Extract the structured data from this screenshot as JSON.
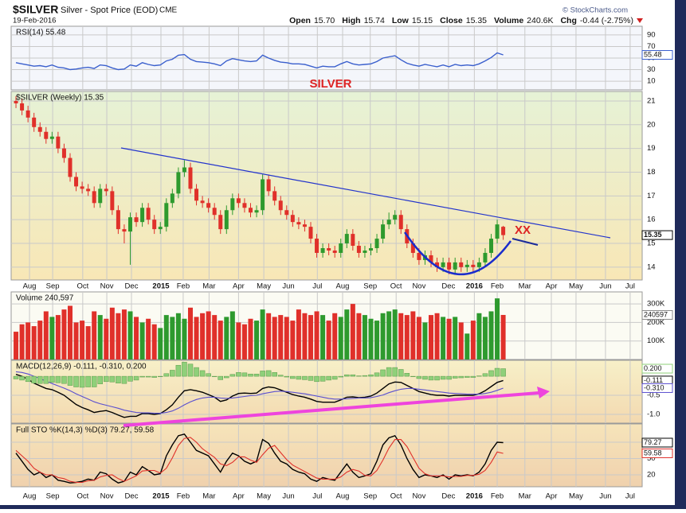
{
  "header": {
    "symbol": "$SILVER",
    "name": "Silver - Spot Price (EOD)",
    "exchange": "CME",
    "date": "19-Feb-2016",
    "quote": [
      {
        "label": "Open",
        "value": "15.70"
      },
      {
        "label": "High",
        "value": "15.74"
      },
      {
        "label": "Low",
        "value": "15.15"
      },
      {
        "label": "Close",
        "value": "15.35"
      },
      {
        "label": "Volume",
        "value": "240.6K"
      },
      {
        "label": "Chg",
        "value": "-0.44 (-2.75%)"
      }
    ],
    "credit": "© StockCharts.com"
  },
  "chart_data": [
    {
      "type": "line",
      "title": "RSI(14) 55.48",
      "ylim": [
        -5,
        105
      ],
      "yticks": [
        90,
        70,
        50,
        30,
        10
      ],
      "grid": true,
      "series": [
        {
          "color": "#3a5fcd",
          "values": [
            42,
            40,
            38,
            36,
            37,
            35,
            38,
            34,
            33,
            30,
            31,
            33,
            34,
            32,
            38,
            37,
            33,
            30,
            31,
            38,
            36,
            42,
            39,
            37,
            38,
            45,
            48,
            55,
            56,
            48,
            44,
            43,
            42,
            40,
            37,
            45,
            49,
            47,
            45,
            44,
            45,
            55,
            50,
            46,
            43,
            42,
            40,
            40,
            39,
            36,
            33,
            36,
            35,
            35,
            40,
            44,
            40,
            38,
            39,
            40,
            44,
            50,
            52,
            54,
            47,
            41,
            38,
            36,
            39,
            37,
            35,
            38,
            35,
            39,
            37,
            38,
            37,
            40,
            45,
            51,
            59,
            55.48
          ]
        }
      ]
    },
    {
      "type": "candlestick",
      "title": "$SILVER (Weekly) 15.35",
      "annotations": [
        "SILVER",
        "XX"
      ],
      "xlim": [
        -0.8,
        104.1
      ],
      "xticks": [
        {
          "value": 2.25,
          "label": "Aug"
        },
        {
          "value": 6.1,
          "label": "Sep"
        },
        {
          "value": 11.1,
          "label": "Oct"
        },
        {
          "value": 15.1,
          "label": "Nov"
        },
        {
          "value": 19.2,
          "label": "Dec"
        },
        {
          "value": 24.1,
          "label": "2015"
        },
        {
          "value": 27.8,
          "label": "Feb"
        },
        {
          "value": 32.1,
          "label": "Mar"
        },
        {
          "value": 37.0,
          "label": "Apr"
        },
        {
          "value": 41.2,
          "label": "May"
        },
        {
          "value": 45.3,
          "label": "Jun"
        },
        {
          "value": 50.1,
          "label": "Jul"
        },
        {
          "value": 54.3,
          "label": "Aug"
        },
        {
          "value": 58.9,
          "label": "Sep"
        },
        {
          "value": 63.2,
          "label": "Oct"
        },
        {
          "value": 67.0,
          "label": "Nov"
        },
        {
          "value": 71.9,
          "label": "Dec"
        },
        {
          "value": 76.2,
          "label": "2016"
        },
        {
          "value": 80.0,
          "label": "Feb"
        },
        {
          "value": 84.6,
          "label": "Mar"
        },
        {
          "value": 89.0,
          "label": "Apr"
        },
        {
          "value": 93.1,
          "label": "May"
        },
        {
          "value": 98.0,
          "label": "Jun"
        },
        {
          "value": 102.1,
          "label": "Jul"
        }
      ],
      "ylim": [
        13.46,
        21.4
      ],
      "yticks": [
        14,
        15,
        16,
        17,
        18,
        19,
        20,
        21
      ],
      "grid": true,
      "up_color": "#2e9a2e",
      "down_color": "#e0302a",
      "open": [
        21.0,
        20.9,
        20.6,
        20.3,
        19.9,
        19.7,
        19.4,
        19.5,
        19.0,
        18.6,
        17.8,
        17.4,
        17.3,
        17.2,
        16.7,
        17.3,
        17.2,
        16.4,
        15.6,
        15.5,
        16.1,
        15.9,
        16.5,
        16.0,
        15.6,
        15.7,
        16.7,
        17.1,
        18.0,
        18.2,
        17.3,
        16.8,
        16.7,
        16.5,
        16.2,
        15.6,
        16.4,
        16.9,
        16.7,
        16.5,
        16.3,
        16.4,
        17.7,
        17.2,
        16.8,
        16.4,
        16.2,
        15.9,
        15.8,
        15.7,
        15.2,
        14.6,
        14.8,
        14.7,
        14.6,
        15.0,
        15.4,
        14.9,
        14.6,
        14.7,
        14.8,
        15.2,
        15.8,
        16.0,
        16.2,
        15.6,
        15.0,
        14.6,
        14.3,
        14.5,
        14.2,
        14.0,
        14.2,
        13.9,
        14.2,
        14.0,
        14.1,
        14.0,
        14.2,
        14.6,
        15.2,
        15.7
      ],
      "high": [
        21.2,
        21.1,
        20.8,
        20.5,
        20.1,
        19.9,
        19.7,
        19.7,
        19.2,
        18.8,
        18.0,
        17.6,
        17.5,
        17.4,
        17.5,
        17.5,
        17.4,
        16.6,
        15.8,
        16.3,
        16.3,
        16.7,
        16.7,
        16.2,
        15.9,
        16.9,
        17.3,
        18.2,
        18.5,
        18.4,
        17.5,
        17.0,
        16.9,
        16.7,
        16.4,
        16.6,
        17.1,
        17.1,
        16.9,
        16.7,
        16.6,
        17.9,
        17.9,
        17.4,
        17.0,
        16.6,
        16.4,
        16.1,
        16.0,
        15.9,
        15.4,
        15.0,
        15.0,
        14.9,
        15.2,
        15.6,
        15.6,
        15.1,
        14.9,
        15.0,
        15.4,
        16.0,
        16.3,
        16.4,
        16.4,
        15.8,
        15.2,
        14.8,
        14.7,
        14.7,
        14.4,
        14.4,
        14.4,
        14.4,
        14.4,
        14.3,
        14.3,
        14.4,
        14.8,
        15.4,
        16.0,
        15.74
      ],
      "low": [
        20.7,
        20.4,
        20.1,
        19.7,
        19.5,
        19.2,
        19.2,
        18.8,
        18.4,
        17.6,
        17.2,
        17.1,
        17.0,
        16.5,
        16.5,
        17.0,
        16.2,
        15.4,
        15.0,
        14.1,
        15.7,
        15.7,
        15.8,
        15.4,
        15.4,
        15.5,
        16.5,
        16.9,
        17.8,
        17.1,
        16.6,
        16.5,
        16.3,
        16.0,
        15.4,
        15.4,
        16.2,
        16.5,
        16.3,
        16.1,
        16.1,
        16.2,
        17.0,
        16.6,
        16.2,
        16.0,
        15.7,
        15.6,
        15.5,
        15.0,
        14.4,
        14.4,
        14.5,
        14.4,
        14.4,
        14.8,
        14.7,
        14.4,
        14.4,
        14.5,
        14.6,
        15.0,
        15.6,
        15.8,
        15.4,
        14.8,
        14.4,
        14.1,
        14.1,
        14.0,
        13.8,
        13.8,
        13.7,
        13.7,
        13.8,
        13.8,
        13.8,
        13.8,
        14.0,
        14.4,
        15.0,
        15.15
      ],
      "close": [
        20.9,
        20.6,
        20.3,
        19.9,
        19.7,
        19.4,
        19.5,
        19.0,
        18.6,
        17.8,
        17.4,
        17.3,
        17.2,
        16.7,
        17.3,
        17.2,
        16.4,
        15.6,
        15.5,
        16.1,
        15.9,
        16.5,
        16.0,
        15.6,
        15.7,
        16.7,
        17.1,
        18.0,
        18.2,
        17.3,
        16.8,
        16.7,
        16.5,
        16.2,
        15.6,
        16.4,
        16.9,
        16.7,
        16.5,
        16.3,
        16.4,
        17.7,
        17.2,
        16.8,
        16.4,
        16.2,
        15.9,
        15.8,
        15.7,
        15.2,
        14.6,
        14.8,
        14.7,
        14.6,
        15.0,
        15.4,
        14.9,
        14.6,
        14.7,
        14.8,
        15.2,
        15.8,
        16.0,
        16.2,
        15.6,
        15.0,
        14.6,
        14.3,
        14.5,
        14.2,
        14.0,
        14.2,
        13.9,
        14.2,
        14.0,
        14.1,
        14.0,
        14.2,
        14.6,
        15.2,
        15.8,
        15.35
      ]
    },
    {
      "type": "bar",
      "title": "Volume 240,597",
      "ylim": [
        0,
        365000
      ],
      "grid": true,
      "yticks": [
        {
          "value": 100000,
          "label": "100K"
        },
        {
          "value": 200000,
          "label": "200K"
        },
        {
          "value": 300000,
          "label": "300K"
        }
      ],
      "values": [
        150000,
        190000,
        200000,
        180000,
        210000,
        260000,
        230000,
        240000,
        270000,
        290000,
        200000,
        210000,
        180000,
        260000,
        240000,
        220000,
        280000,
        250000,
        270000,
        260000,
        230000,
        200000,
        220000,
        190000,
        170000,
        240000,
        230000,
        250000,
        220000,
        280000,
        230000,
        250000,
        260000,
        240000,
        210000,
        230000,
        260000,
        200000,
        190000,
        220000,
        210000,
        270000,
        250000,
        230000,
        240000,
        230000,
        210000,
        270000,
        250000,
        240000,
        260000,
        240000,
        210000,
        250000,
        230000,
        270000,
        300000,
        250000,
        240000,
        220000,
        210000,
        250000,
        260000,
        270000,
        250000,
        240000,
        260000,
        230000,
        200000,
        240000,
        250000,
        230000,
        220000,
        230000,
        200000,
        140000,
        210000,
        250000,
        230000,
        260000,
        330000,
        240597
      ]
    },
    {
      "type": "line",
      "title": "MACD(12,26,9) -0.111, -0.310, 0.200",
      "ylim": [
        -1.23,
        0.42
      ],
      "grid": true,
      "yticks": [
        {
          "value": -1,
          "label": "-1.0"
        },
        {
          "value": -0.5,
          "label": "-0.5"
        }
      ],
      "series": [
        {
          "color": "#000000",
          "values": [
            0.05,
            0.0,
            -0.08,
            -0.18,
            -0.25,
            -0.32,
            -0.35,
            -0.42,
            -0.5,
            -0.62,
            -0.74,
            -0.82,
            -0.88,
            -0.95,
            -0.92,
            -0.9,
            -0.95,
            -1.02,
            -1.08,
            -1.05,
            -1.05,
            -0.98,
            -0.98,
            -1.0,
            -0.98,
            -0.88,
            -0.75,
            -0.55,
            -0.38,
            -0.35,
            -0.38,
            -0.42,
            -0.48,
            -0.55,
            -0.66,
            -0.62,
            -0.52,
            -0.45,
            -0.44,
            -0.45,
            -0.44,
            -0.32,
            -0.28,
            -0.3,
            -0.36,
            -0.42,
            -0.48,
            -0.52,
            -0.55,
            -0.6,
            -0.66,
            -0.68,
            -0.68,
            -0.68,
            -0.62,
            -0.55,
            -0.54,
            -0.56,
            -0.55,
            -0.52,
            -0.44,
            -0.32,
            -0.2,
            -0.15,
            -0.16,
            -0.24,
            -0.32,
            -0.4,
            -0.44,
            -0.48,
            -0.5,
            -0.5,
            -0.52,
            -0.5,
            -0.5,
            -0.5,
            -0.5,
            -0.46,
            -0.38,
            -0.27,
            -0.16,
            -0.111
          ]
        },
        {
          "color": "#5a4fcf",
          "last_label": "-0.310",
          "values": [
            0.12,
            0.1,
            0.06,
            0.0,
            -0.06,
            -0.13,
            -0.19,
            -0.25,
            -0.31,
            -0.38,
            -0.46,
            -0.53,
            -0.6,
            -0.67,
            -0.72,
            -0.76,
            -0.8,
            -0.84,
            -0.89,
            -0.92,
            -0.95,
            -0.96,
            -0.96,
            -0.97,
            -0.97,
            -0.95,
            -0.91,
            -0.84,
            -0.75,
            -0.67,
            -0.61,
            -0.57,
            -0.55,
            -0.55,
            -0.57,
            -0.58,
            -0.57,
            -0.55,
            -0.53,
            -0.51,
            -0.5,
            -0.46,
            -0.43,
            -0.4,
            -0.39,
            -0.4,
            -0.42,
            -0.44,
            -0.46,
            -0.49,
            -0.52,
            -0.55,
            -0.58,
            -0.6,
            -0.6,
            -0.59,
            -0.58,
            -0.57,
            -0.57,
            -0.56,
            -0.53,
            -0.49,
            -0.43,
            -0.38,
            -0.34,
            -0.32,
            -0.32,
            -0.34,
            -0.36,
            -0.38,
            -0.4,
            -0.42,
            -0.44,
            -0.45,
            -0.46,
            -0.47,
            -0.47,
            -0.47,
            -0.45,
            -0.42,
            -0.37,
            -0.31
          ]
        },
        {
          "type": "bar",
          "color": "#8fd07a",
          "last_label": "0.200",
          "values": [
            -0.07,
            -0.1,
            -0.14,
            -0.18,
            -0.19,
            -0.19,
            -0.16,
            -0.17,
            -0.19,
            -0.24,
            -0.28,
            -0.29,
            -0.28,
            -0.28,
            -0.2,
            -0.14,
            -0.15,
            -0.18,
            -0.19,
            -0.13,
            -0.1,
            -0.02,
            -0.02,
            -0.03,
            -0.01,
            0.07,
            0.16,
            0.29,
            0.37,
            0.32,
            0.23,
            0.15,
            0.07,
            0.0,
            -0.09,
            -0.04,
            0.05,
            0.1,
            0.09,
            0.06,
            0.06,
            0.14,
            0.15,
            0.1,
            0.03,
            -0.02,
            -0.06,
            -0.08,
            -0.09,
            -0.11,
            -0.14,
            -0.13,
            -0.1,
            -0.08,
            -0.02,
            0.04,
            0.04,
            0.01,
            0.02,
            0.04,
            0.09,
            0.17,
            0.23,
            0.23,
            0.18,
            0.08,
            0.0,
            -0.06,
            -0.08,
            -0.1,
            -0.1,
            -0.08,
            -0.08,
            -0.05,
            -0.04,
            -0.03,
            -0.03,
            0.01,
            0.07,
            0.15,
            0.21,
            0.2
          ]
        }
      ]
    },
    {
      "type": "line",
      "title": "Full STO %K(14,3) %D(3) 79.27, 59.58",
      "ylim": [
        -2,
        113.7
      ],
      "yticks": [
        80,
        50,
        20
      ],
      "grid": true,
      "series": [
        {
          "color": "#000000",
          "values": [
            60,
            45,
            30,
            20,
            25,
            15,
            20,
            10,
            8,
            5,
            6,
            8,
            12,
            10,
            25,
            22,
            12,
            5,
            8,
            25,
            20,
            35,
            28,
            20,
            22,
            55,
            75,
            92,
            95,
            80,
            65,
            60,
            55,
            40,
            25,
            45,
            60,
            55,
            45,
            40,
            45,
            85,
            78,
            60,
            45,
            40,
            30,
            25,
            22,
            12,
            8,
            15,
            12,
            10,
            25,
            40,
            25,
            15,
            18,
            22,
            45,
            75,
            88,
            92,
            75,
            50,
            30,
            15,
            20,
            18,
            15,
            20,
            12,
            20,
            18,
            20,
            18,
            25,
            40,
            65,
            80,
            79.27
          ]
        },
        {
          "color": "#e0302a",
          "values": [
            65,
            55,
            45,
            32,
            25,
            20,
            20,
            15,
            13,
            8,
            6,
            6,
            9,
            10,
            16,
            19,
            20,
            13,
            8,
            13,
            18,
            27,
            28,
            28,
            23,
            32,
            51,
            74,
            87,
            89,
            80,
            68,
            60,
            52,
            40,
            37,
            43,
            53,
            53,
            47,
            43,
            57,
            69,
            74,
            61,
            48,
            38,
            32,
            26,
            20,
            14,
            12,
            12,
            12,
            16,
            25,
            30,
            27,
            19,
            18,
            28,
            47,
            69,
            85,
            85,
            72,
            52,
            32,
            22,
            18,
            18,
            18,
            16,
            17,
            17,
            19,
            19,
            21,
            28,
            43,
            62,
            59.58
          ]
        }
      ]
    }
  ]
}
